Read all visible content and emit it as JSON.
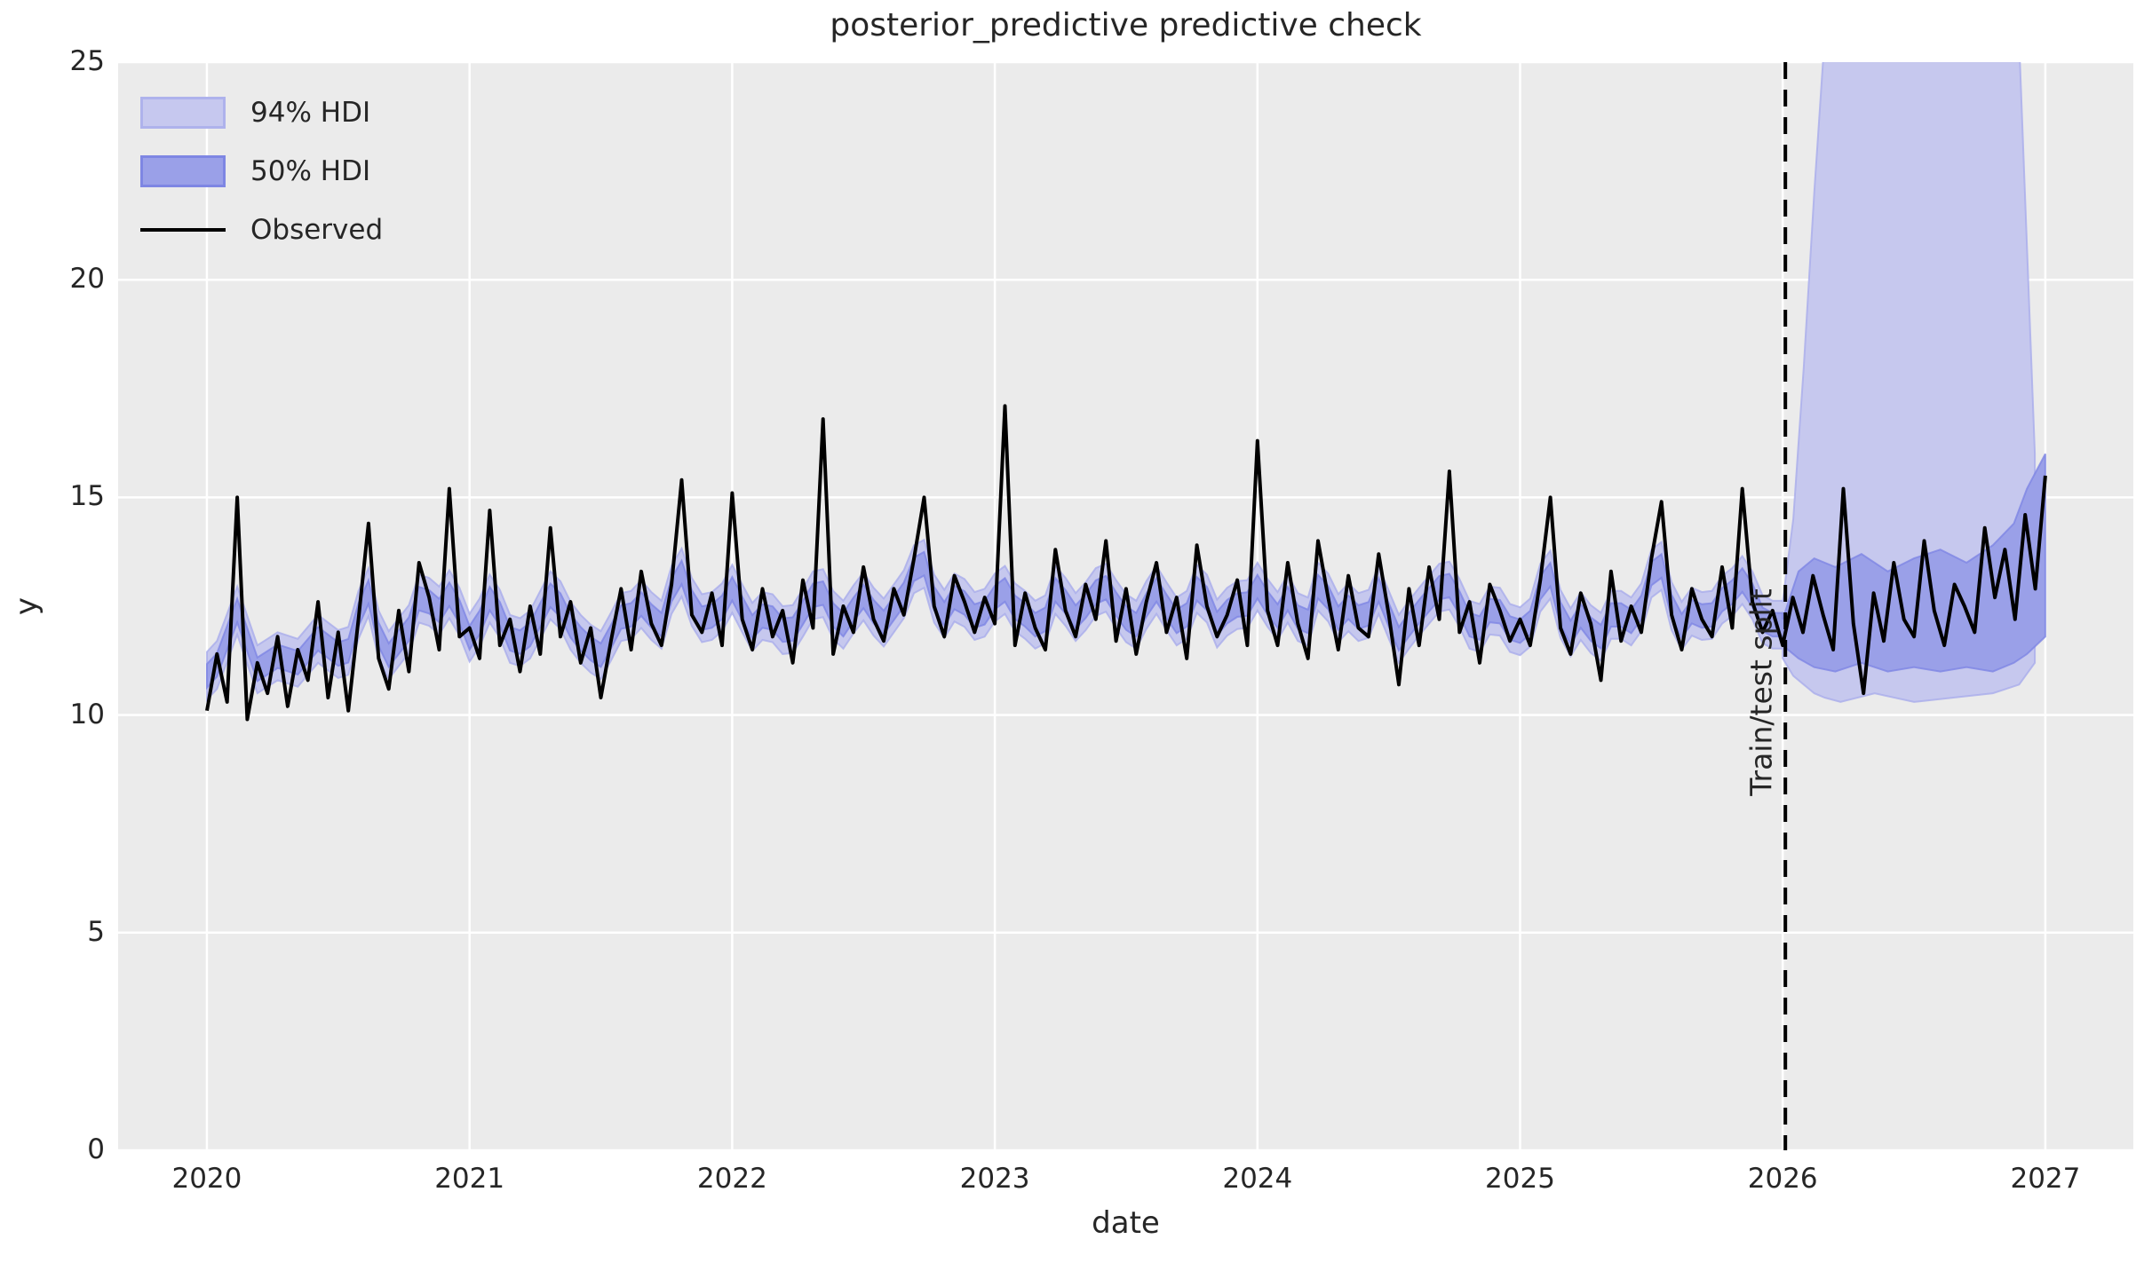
{
  "figure": {
    "title": "posterior_predictive predictive check"
  },
  "axes": {
    "xlabel": "date",
    "ylabel": "y",
    "x_tick_labels": [
      "2020",
      "2021",
      "2022",
      "2023",
      "2024",
      "2025",
      "2026",
      "2027"
    ],
    "y_tick_labels": [
      "0",
      "5",
      "10",
      "15",
      "20",
      "25"
    ]
  },
  "legend": {
    "items": [
      {
        "label": "94% HDI",
        "swatch": "hdi-94-band"
      },
      {
        "label": "50% HDI",
        "swatch": "hdi-50-band"
      },
      {
        "label": "Observed",
        "swatch": "observed-line"
      }
    ]
  },
  "annotation": {
    "split_label": "Train/test split"
  },
  "colors": {
    "axes_bg": "#ebebeb",
    "grid": "#ffffff",
    "hdi94_fill": "#c6c8ee",
    "hdi94_edge": "#a9adeb",
    "hdi50_fill": "#9aa0e8",
    "hdi50_edge": "#7e86e3",
    "observed": "#000000",
    "split_line": "#000000",
    "text": "#262626"
  },
  "chart_data": {
    "type": "line",
    "title": "posterior_predictive predictive check",
    "xlabel": "date",
    "ylabel": "y",
    "xlim": [
      2019.662,
      2027.335
    ],
    "ylim": [
      0,
      25
    ],
    "x_tick_values": [
      2020,
      2021,
      2022,
      2023,
      2024,
      2025,
      2026,
      2027
    ],
    "y_tick_values": [
      0,
      5,
      10,
      15,
      20,
      25
    ],
    "grid": true,
    "legend_position": "upper left",
    "train_test_split_x": 2026.01,
    "series_x_start": 2020.0,
    "series_x_step": 0.0384615,
    "observed": [
      10.1,
      11.4,
      10.3,
      15.0,
      9.9,
      11.2,
      10.5,
      11.8,
      10.2,
      11.5,
      10.8,
      12.6,
      10.4,
      11.9,
      10.1,
      12.2,
      14.4,
      11.3,
      10.6,
      12.4,
      11.0,
      13.5,
      12.7,
      11.5,
      15.2,
      11.8,
      12.0,
      11.3,
      14.7,
      11.6,
      12.2,
      11.0,
      12.5,
      11.4,
      14.3,
      11.8,
      12.6,
      11.2,
      12.0,
      10.4,
      11.7,
      12.9,
      11.5,
      13.3,
      12.1,
      11.6,
      13.0,
      15.4,
      12.3,
      11.9,
      12.8,
      11.6,
      15.1,
      12.2,
      11.5,
      12.9,
      11.8,
      12.4,
      11.2,
      13.1,
      12.0,
      16.8,
      11.4,
      12.5,
      11.9,
      13.4,
      12.2,
      11.7,
      12.9,
      12.3,
      13.6,
      15.0,
      12.5,
      11.8,
      13.2,
      12.6,
      11.9,
      12.7,
      12.1,
      17.1,
      11.6,
      12.8,
      12.0,
      11.5,
      13.8,
      12.4,
      11.8,
      13.0,
      12.2,
      14.0,
      11.7,
      12.9,
      11.4,
      12.6,
      13.5,
      11.9,
      12.7,
      11.3,
      13.9,
      12.5,
      11.8,
      12.3,
      13.1,
      11.6,
      16.3,
      12.4,
      11.6,
      13.5,
      12.1,
      11.3,
      14.0,
      12.7,
      11.5,
      13.2,
      12.0,
      11.8,
      13.7,
      12.3,
      10.7,
      12.9,
      11.6,
      13.4,
      12.2,
      15.6,
      11.9,
      12.6,
      11.2,
      13.0,
      12.4,
      11.7,
      12.2,
      11.6,
      13.1,
      15.0,
      12.0,
      11.4,
      12.8,
      12.1,
      10.8,
      13.3,
      11.7,
      12.5,
      11.9,
      13.6,
      14.9,
      12.3,
      11.5,
      12.9,
      12.2,
      11.8,
      13.4,
      12.0,
      15.2,
      12.6,
      11.9,
      12.4,
      11.6,
      12.7,
      11.9,
      13.2,
      12.3,
      11.5,
      15.2,
      12.1,
      10.5,
      12.8,
      11.7,
      13.5,
      12.2,
      11.8,
      14.0,
      12.4,
      11.6,
      13.0,
      12.5,
      11.9,
      14.3,
      12.7,
      13.8,
      12.2,
      14.6,
      12.9,
      15.5
    ],
    "hdi_train_band_model": {
      "clamp_min": 10.9,
      "clamp_max": 13.9,
      "hw94": 0.55,
      "hw50": 0.27
    },
    "hdi94_test": {
      "x": [
        2026.0,
        2026.04,
        2026.08,
        2026.12,
        2026.16,
        2026.22,
        2026.35,
        2026.5,
        2026.65,
        2026.8,
        2026.9,
        2026.96
      ],
      "upper": [
        12.6,
        14.5,
        18.0,
        22.0,
        25.6,
        26.8,
        27.0,
        26.8,
        27.0,
        26.6,
        25.5,
        16.0
      ],
      "lower": [
        11.3,
        10.9,
        10.7,
        10.5,
        10.4,
        10.3,
        10.5,
        10.3,
        10.4,
        10.5,
        10.7,
        11.2
      ]
    },
    "hdi50_test": {
      "x": [
        2026.0,
        2026.06,
        2026.12,
        2026.2,
        2026.3,
        2026.4,
        2026.5,
        2026.6,
        2026.7,
        2026.8,
        2026.88,
        2026.93,
        2027.0
      ],
      "upper": [
        12.2,
        13.3,
        13.6,
        13.4,
        13.7,
        13.3,
        13.6,
        13.8,
        13.5,
        13.9,
        14.4,
        15.2,
        16.0
      ],
      "lower": [
        11.6,
        11.3,
        11.1,
        11.0,
        11.2,
        11.0,
        11.1,
        11.0,
        11.1,
        11.0,
        11.2,
        11.4,
        11.8
      ]
    }
  }
}
